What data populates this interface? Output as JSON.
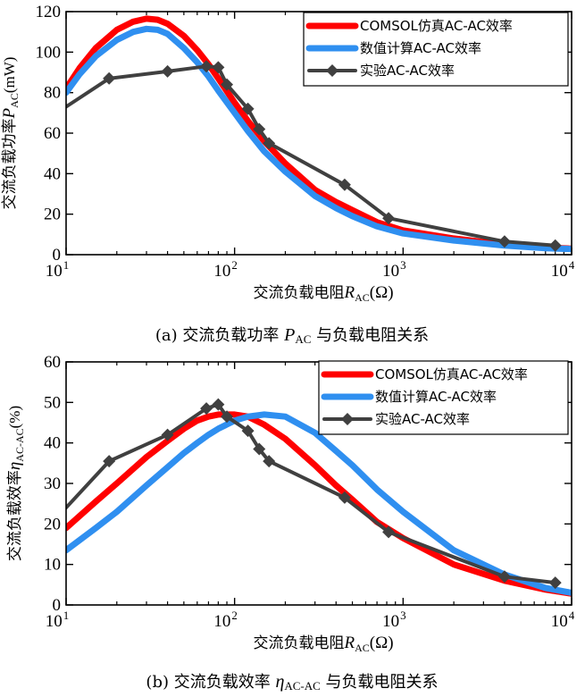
{
  "chart_data": [
    {
      "type": "line",
      "caption": {
        "prefix": "(a)",
        "text": "交流负载功率 ",
        "sym": "P",
        "sub": "AC",
        "tail": " 与负载电阻关系"
      },
      "xlabel": {
        "text": "交流负载电阻",
        "sym": "R",
        "sub": "AC",
        "unit": "(Ω)"
      },
      "ylabel": {
        "text": "交流负载功率",
        "sym": "P",
        "sub": "AC",
        "unit": "(mW)"
      },
      "xscale": "log",
      "xlim": [
        10,
        10000
      ],
      "ylim": [
        0,
        120
      ],
      "yticks": [
        0,
        20,
        40,
        60,
        80,
        100,
        120
      ],
      "xticks": [
        {
          "base": "10",
          "exp": "1"
        },
        {
          "base": "10",
          "exp": "2"
        },
        {
          "base": "10",
          "exp": "3"
        },
        {
          "base": "10",
          "exp": "4"
        }
      ],
      "legend_position": "top-right",
      "series": [
        {
          "name": "COMSOL仿真AC-AC效率",
          "color": "#ff0000",
          "marker": "none",
          "x": [
            10,
            12,
            15,
            20,
            25,
            30,
            35,
            40,
            50,
            60,
            70,
            80,
            100,
            120,
            150,
            200,
            300,
            400,
            500,
            700,
            1000,
            2000,
            4000,
            7000,
            10000
          ],
          "y": [
            82,
            92,
            102,
            111,
            115,
            116.5,
            116,
            114,
            108,
            101,
            94,
            87,
            75,
            66,
            56,
            45,
            32,
            26,
            22,
            16,
            12,
            8,
            5,
            3.5,
            3
          ]
        },
        {
          "name": "数值计算AC-AC效率",
          "color": "#2f8ff0",
          "marker": "none",
          "x": [
            10,
            12,
            15,
            20,
            25,
            30,
            35,
            40,
            50,
            60,
            70,
            80,
            100,
            120,
            150,
            200,
            300,
            400,
            500,
            700,
            1000,
            2000,
            4000,
            7000,
            10000
          ],
          "y": [
            80,
            89,
            98,
            106,
            110,
            111.5,
            111,
            109,
            102,
            95,
            88,
            81,
            70,
            61,
            51,
            41,
            29,
            23,
            19,
            14,
            10.5,
            7,
            4.5,
            3.2,
            2.8
          ]
        },
        {
          "name": "实验AC-AC效率",
          "color": "#404040",
          "marker": "diamond",
          "x": [
            10,
            18,
            40,
            68,
            80,
            90,
            120,
            140,
            160,
            450,
            820,
            4000,
            8000
          ],
          "y": [
            73,
            87,
            90.5,
            93,
            92.5,
            84,
            72,
            62,
            55,
            34.5,
            18,
            6.5,
            4.5
          ]
        }
      ]
    },
    {
      "type": "line",
      "caption": {
        "prefix": "(b)",
        "text": "交流负载效率 ",
        "sym": "η",
        "sub": "AC-AC",
        "tail": " 与负载电阻关系"
      },
      "xlabel": {
        "text": "交流负载电阻",
        "sym": "R",
        "sub": "AC",
        "unit": "(Ω)"
      },
      "ylabel": {
        "text": "交流负载效率",
        "sym": "η",
        "sub": "AC-AC",
        "unit": "(%)"
      },
      "xscale": "log",
      "xlim": [
        10,
        10000
      ],
      "ylim": [
        0,
        60
      ],
      "yticks": [
        0,
        10,
        20,
        30,
        40,
        50,
        60
      ],
      "xticks": [
        {
          "base": "10",
          "exp": "1"
        },
        {
          "base": "10",
          "exp": "2"
        },
        {
          "base": "10",
          "exp": "3"
        },
        {
          "base": "10",
          "exp": "4"
        }
      ],
      "legend_position": "top-right",
      "series": [
        {
          "name": "COMSOL仿真AC-AC效率",
          "color": "#ff0000",
          "marker": "none",
          "x": [
            10,
            15,
            20,
            30,
            40,
            50,
            60,
            70,
            80,
            100,
            120,
            150,
            200,
            300,
            400,
            500,
            700,
            1000,
            2000,
            4000,
            7000,
            10000
          ],
          "y": [
            19,
            25.5,
            30,
            36.5,
            40.5,
            43.5,
            45.5,
            46.5,
            47,
            47,
            46.5,
            44.5,
            41,
            34.5,
            29.5,
            26,
            20.5,
            16.5,
            10,
            6,
            3.8,
            2.8
          ]
        },
        {
          "name": "数值计算AC-AC效率",
          "color": "#2f8ff0",
          "marker": "none",
          "x": [
            10,
            15,
            20,
            30,
            40,
            50,
            60,
            70,
            80,
            100,
            120,
            150,
            200,
            300,
            400,
            500,
            700,
            1000,
            2000,
            4000,
            7000,
            10000
          ],
          "y": [
            13.5,
            19,
            23,
            29.5,
            34,
            37.5,
            40,
            42,
            43.5,
            45.5,
            46.5,
            47,
            46.5,
            42.5,
            38,
            34.5,
            28.5,
            23,
            13.5,
            7.5,
            4.2,
            3
          ]
        },
        {
          "name": "实验AC-AC效率",
          "color": "#404040",
          "marker": "diamond",
          "x": [
            10,
            18,
            40,
            68,
            80,
            90,
            120,
            140,
            160,
            450,
            820,
            4000,
            8000
          ],
          "y": [
            24,
            35.5,
            42,
            48.5,
            49.5,
            46.5,
            43,
            38.5,
            35.5,
            26.5,
            18,
            7,
            5.5
          ]
        }
      ]
    }
  ]
}
